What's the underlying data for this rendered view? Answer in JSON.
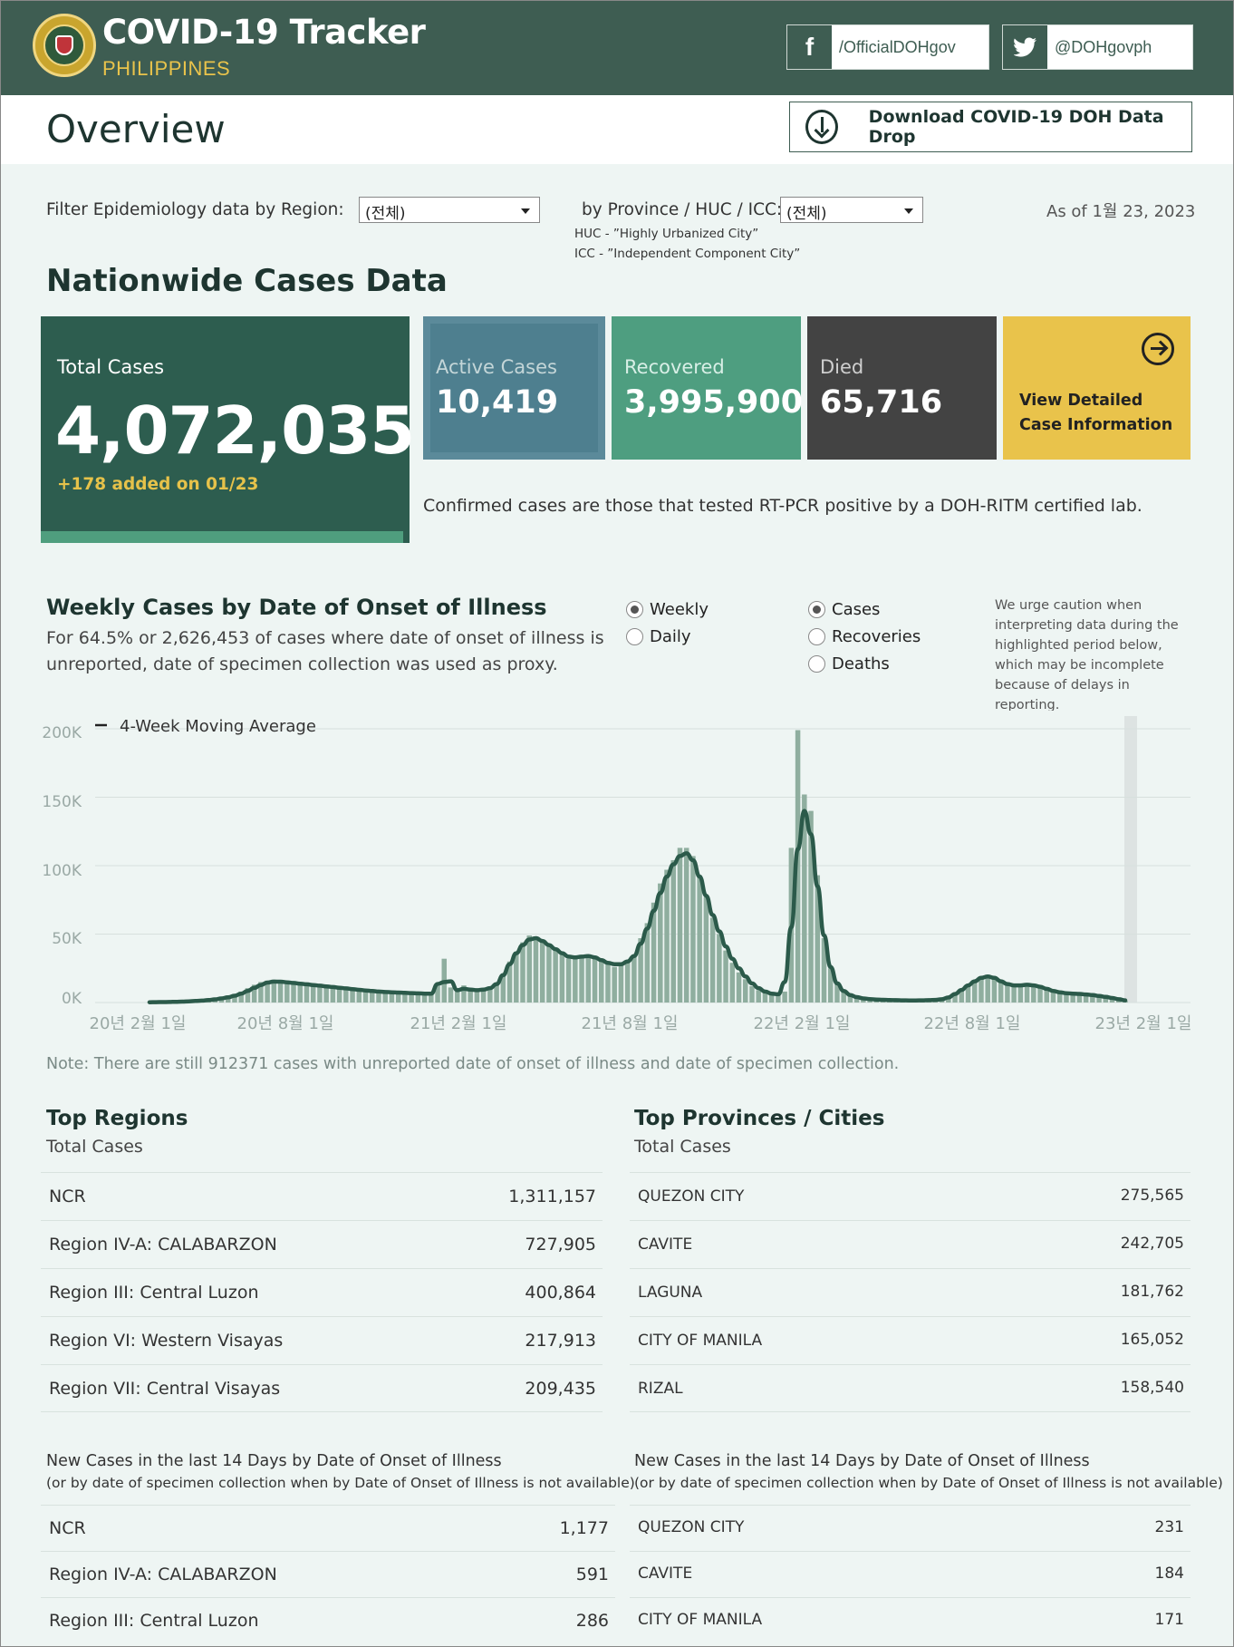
{
  "header": {
    "title": "COVID-19 Tracker",
    "subtitle": "PHILIPPINES",
    "facebook": "/OfficialDOHgov",
    "twitter": "@DOHgovph",
    "facebook_glyph": "f",
    "colors": {
      "header_bg": "#3e5d52",
      "accent": "#e9c34b"
    }
  },
  "overview": {
    "title": "Overview",
    "download_label": "Download COVID-19 DOH Data Drop"
  },
  "filters": {
    "region_label": "Filter Epidemiology data by Region:",
    "region_value": "(전체)",
    "province_label": "by Province / HUC / ICC:",
    "province_value": "(전체)",
    "huc_note": "HUC - ”Highly Urbanized City”",
    "icc_note": "ICC - ”Independent Component City”",
    "as_of": "As of 1월 23, 2023"
  },
  "nationwide": {
    "title": "Nationwide Cases Data",
    "total_label": "Total Cases",
    "total_value": "4,072,035",
    "added": "+178 added on 01/23",
    "active_label": "Active Cases",
    "active_value": "10,419",
    "recovered_label": "Recovered",
    "recovered_value": "3,995,900",
    "died_label": "Died",
    "died_value": "65,716",
    "detail_label": "View Detailed Case Information",
    "confirmed_note": "Confirmed cases are those that tested RT-PCR positive by a DOH-RITM certified lab."
  },
  "weekly": {
    "title": "Weekly Cases by Date of Onset of Illness",
    "subtitle": "For 64.5% or 2,626,453 of cases where date of onset of illness is unreported, date of specimen collection was used as proxy.",
    "radio_period": [
      "Weekly",
      "Daily"
    ],
    "radio_period_selected": "Weekly",
    "radio_metric": [
      "Cases",
      "Recoveries",
      "Deaths"
    ],
    "radio_metric_selected": "Cases",
    "caution": "We urge caution when interpreting data during the highlighted period below, which may be incomplete because of delays in reporting.",
    "note": "Note: There are still 912371 cases with unreported date of onset of illness and date of specimen collection."
  },
  "chart_data": {
    "type": "bar",
    "legend": [
      "4-Week Moving Average"
    ],
    "y_ticks": [
      "200K",
      "150K",
      "100K",
      "50K",
      "0K"
    ],
    "x_ticks": [
      "20년 2월 1일",
      "20년 8월 1일",
      "21년 2월 1일",
      "21년 8월 1일",
      "22년 2월 1일",
      "22년 8월 1일",
      "23년 2월 1일"
    ],
    "ylim": [
      0,
      200000
    ],
    "grid": true,
    "series": [
      {
        "name": "Weekly Cases",
        "style": "bar",
        "color": "#8fae9f",
        "values": [
          200,
          300,
          400,
          500,
          600,
          800,
          1000,
          1300,
          1700,
          2200,
          2800,
          3500,
          4500,
          6000,
          8000,
          10500,
          13000,
          15000,
          16000,
          15500,
          15000,
          14500,
          14000,
          13500,
          13000,
          12500,
          12000,
          11500,
          11000,
          10500,
          10000,
          9500,
          9000,
          8500,
          8000,
          7800,
          7600,
          7400,
          7200,
          7000,
          6800,
          6600,
          6400,
          6300,
          12000,
          32000,
          11000,
          8000,
          12500,
          9000,
          8000,
          8500,
          10000,
          13000,
          20000,
          30000,
          37000,
          44000,
          49000,
          47000,
          44000,
          41000,
          38000,
          35000,
          32000,
          33000,
          34000,
          35000,
          33000,
          31000,
          28000,
          26000,
          27000,
          30000,
          35000,
          47000,
          58000,
          73000,
          87000,
          97000,
          104000,
          113000,
          113000,
          107000,
          93000,
          77000,
          62000,
          50000,
          38000,
          29000,
          22000,
          17000,
          12000,
          9000,
          7000,
          6000,
          6000,
          8000,
          113000,
          199000,
          152000,
          140000,
          93000,
          47000,
          25000,
          15000,
          9000,
          6000,
          4000,
          3000,
          2500,
          2200,
          2000,
          1800,
          1700,
          1600,
          1500,
          1500,
          1600,
          1700,
          1900,
          2300,
          3500,
          6000,
          9000,
          13000,
          16000,
          19000,
          20000,
          18000,
          15000,
          13000,
          12000,
          12500,
          13000,
          12500,
          11000,
          9500,
          8000,
          7000,
          6500,
          6000,
          6000,
          5500,
          5000,
          4500,
          4000,
          3000,
          2000,
          1200
        ]
      },
      {
        "name": "4-Week Moving Average",
        "style": "line",
        "color": "#2b5a4a",
        "values": [
          200,
          250,
          330,
          420,
          530,
          680,
          870,
          1110,
          1420,
          1820,
          2330,
          2950,
          3800,
          4950,
          6500,
          8500,
          10700,
          12800,
          14600,
          15300,
          15200,
          14800,
          14300,
          13800,
          13300,
          12800,
          12300,
          11800,
          11300,
          10800,
          10300,
          9800,
          9300,
          8800,
          8400,
          8000,
          7700,
          7500,
          7300,
          7100,
          6900,
          6700,
          6500,
          6400,
          13500,
          15000,
          15500,
          9000,
          10000,
          9500,
          9000,
          9500,
          10500,
          13500,
          20000,
          28000,
          36000,
          42000,
          46000,
          47000,
          45000,
          42000,
          39000,
          36000,
          33500,
          33000,
          33500,
          34000,
          33000,
          31000,
          29000,
          28000,
          28000,
          30000,
          34000,
          43000,
          54000,
          67000,
          80000,
          92000,
          101000,
          107000,
          109000,
          104000,
          92000,
          78000,
          64000,
          52000,
          41000,
          32000,
          25000,
          19000,
          14000,
          10500,
          8000,
          6500,
          6000,
          15000,
          55000,
          112000,
          140000,
          123000,
          85000,
          49000,
          26000,
          14000,
          8500,
          5500,
          4000,
          3000,
          2500,
          2200,
          2000,
          1800,
          1700,
          1600,
          1500,
          1500,
          1600,
          1700,
          1900,
          2400,
          3700,
          6200,
          9200,
          12500,
          15500,
          18000,
          19000,
          18000,
          15500,
          13500,
          12500,
          12500,
          13000,
          12500,
          11500,
          10000,
          8500,
          7500,
          6800,
          6500,
          6300,
          5900,
          5400,
          4800,
          4100,
          3300,
          2400,
          1600
        ]
      }
    ]
  },
  "top_regions": {
    "title": "Top Regions",
    "subtitle": "Total Cases",
    "rows": [
      {
        "name": "NCR",
        "value": "1,311,157"
      },
      {
        "name": "Region IV-A: CALABARZON",
        "value": "727,905"
      },
      {
        "name": "Region III: Central Luzon",
        "value": "400,864"
      },
      {
        "name": "Region VI: Western Visayas",
        "value": "217,913"
      },
      {
        "name": "Region VII: Central Visayas",
        "value": "209,435"
      }
    ]
  },
  "top_provinces": {
    "title": "Top Provinces / Cities",
    "subtitle": "Total Cases",
    "rows": [
      {
        "name": "QUEZON CITY",
        "value": "275,565"
      },
      {
        "name": "CAVITE",
        "value": "242,705"
      },
      {
        "name": "LAGUNA",
        "value": "181,762"
      },
      {
        "name": "CITY OF MANILA",
        "value": "165,052"
      },
      {
        "name": "RIZAL",
        "value": "158,540"
      }
    ]
  },
  "new_cases": {
    "heading": "New Cases in the last 14 Days by Date of Onset of Illness",
    "subheading": "(or by date of specimen collection when by Date of Onset of Illness is not available)",
    "regions": [
      {
        "name": "NCR",
        "value": "1,177"
      },
      {
        "name": "Region IV-A: CALABARZON",
        "value": "591"
      },
      {
        "name": "Region III: Central Luzon",
        "value": "286"
      }
    ],
    "provinces": [
      {
        "name": "QUEZON CITY",
        "value": "231"
      },
      {
        "name": "CAVITE",
        "value": "184"
      },
      {
        "name": "CITY OF MANILA",
        "value": "171"
      }
    ]
  }
}
